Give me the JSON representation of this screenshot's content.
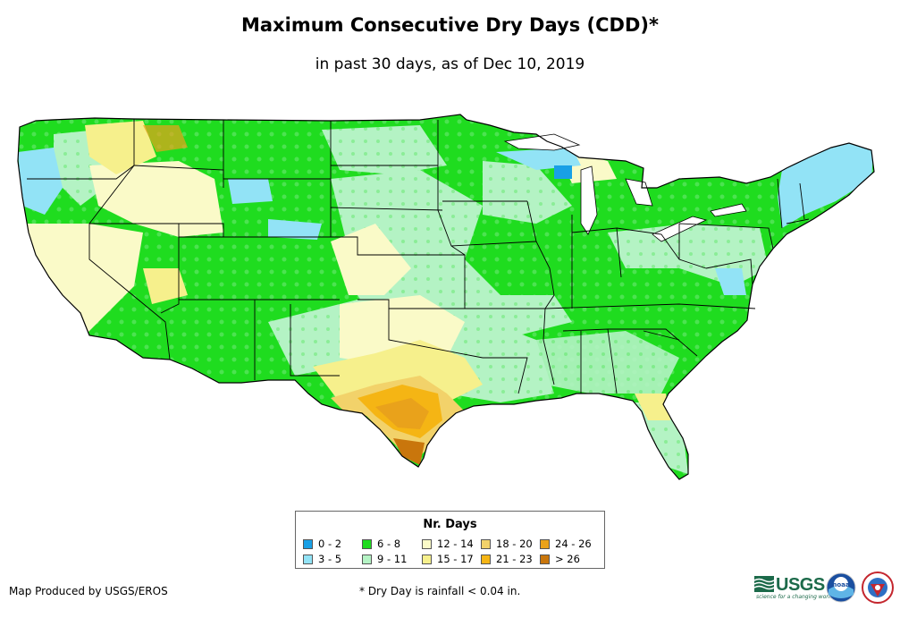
{
  "title": "Maximum Consecutive Dry Days (CDD)*",
  "subtitle": "in past 30 days, as of Dec 10, 2019",
  "legend": {
    "title": "Nr. Days",
    "items": [
      {
        "label": "0 - 2",
        "color": "#19a0e6"
      },
      {
        "label": "3 - 5",
        "color": "#92e3f6"
      },
      {
        "label": "6 - 8",
        "color": "#1fdc1f"
      },
      {
        "label": "9 - 11",
        "color": "#b4f3c4"
      },
      {
        "label": "12 - 14",
        "color": "#fafac8"
      },
      {
        "label": "15 - 17",
        "color": "#f6f08c"
      },
      {
        "label": "18 - 20",
        "color": "#f2d26a"
      },
      {
        "label": "21 - 23",
        "color": "#f5b514"
      },
      {
        "label": "24 - 26",
        "color": "#e9a21b"
      },
      {
        "label": "> 26",
        "color": "#c9760c"
      }
    ]
  },
  "credit": "Map Produced by USGS/EROS",
  "footnote": "* Dry Day is rainfall < 0.04 in.",
  "logos": {
    "usgs": "USGS",
    "usgs_tagline": "science for a changing world",
    "noaa": "noaa"
  },
  "icons": [
    "usgs-logo-icon",
    "noaa-logo-icon",
    "nws-logo-icon"
  ]
}
